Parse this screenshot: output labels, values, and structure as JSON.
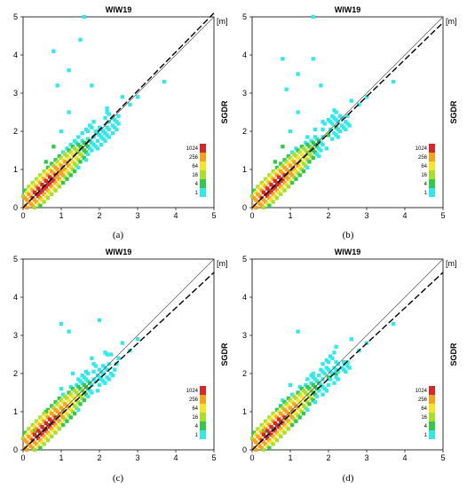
{
  "chart_data": [
    {
      "type": "heatmap",
      "panel_label": "(a)",
      "title": "WIW19",
      "ylabel": "SGDR",
      "unit": "[m]",
      "xlim": [
        0,
        5
      ],
      "ylim": [
        0,
        5
      ],
      "xticks": [
        "0",
        "1",
        "2",
        "3",
        "4",
        "5"
      ],
      "yticks": [
        "0",
        "1",
        "2",
        "3",
        "4",
        "5"
      ],
      "colorbar_ticks": [
        "1024",
        "256",
        "64",
        "16",
        "4",
        "1"
      ],
      "colors": {
        "cyan": "#33e8ea",
        "green": "#33c84b",
        "lime": "#a8de2c",
        "yellow": "#f5e42a",
        "orange": "#f5a21e",
        "red": "#d92626"
      },
      "fit_slope": 1.02,
      "points": [
        [
          0.5,
          0.45,
          1024
        ],
        [
          0.6,
          0.55,
          1024
        ],
        [
          0.7,
          0.65,
          512
        ],
        [
          0.4,
          0.35,
          512
        ],
        [
          0.8,
          0.75,
          256
        ],
        [
          0.9,
          0.85,
          256
        ],
        [
          1.0,
          0.95,
          128
        ],
        [
          1.2,
          1.1,
          64
        ],
        [
          1.4,
          1.3,
          32
        ],
        [
          1.6,
          1.5,
          16
        ],
        [
          1.8,
          1.7,
          8
        ],
        [
          2.0,
          1.9,
          4
        ],
        [
          2.2,
          2.1,
          4
        ],
        [
          2.5,
          2.4,
          2
        ],
        [
          2.8,
          2.7,
          1
        ],
        [
          3.0,
          2.9,
          1
        ],
        [
          0.3,
          0.6,
          16
        ],
        [
          0.6,
          1.2,
          8
        ],
        [
          0.8,
          1.6,
          4
        ],
        [
          1.0,
          2.0,
          2
        ],
        [
          1.2,
          2.5,
          1
        ],
        [
          0.8,
          4.1,
          1
        ],
        [
          1.5,
          4.4,
          1
        ],
        [
          1.2,
          3.6,
          1
        ],
        [
          0.9,
          3.2,
          1
        ],
        [
          1.8,
          3.2,
          1
        ],
        [
          2.6,
          2.9,
          1
        ],
        [
          3.7,
          3.3,
          1
        ],
        [
          1.6,
          5.0,
          1
        ],
        [
          2.2,
          2.6,
          1
        ]
      ]
    },
    {
      "type": "heatmap",
      "panel_label": "(b)",
      "title": "WIW19",
      "ylabel": "SGDR",
      "unit": "[m]",
      "xlim": [
        0,
        5
      ],
      "ylim": [
        0,
        5
      ],
      "xticks": [
        "0",
        "1",
        "2",
        "3",
        "4",
        "5"
      ],
      "yticks": [
        "0",
        "1",
        "2",
        "3",
        "4",
        "5"
      ],
      "colorbar_ticks": [
        "1024",
        "256",
        "64",
        "16",
        "4",
        "1"
      ],
      "colors": {
        "cyan": "#33e8ea",
        "green": "#33c84b",
        "lime": "#a8de2c",
        "yellow": "#f5e42a",
        "orange": "#f5a21e",
        "red": "#d92626"
      },
      "fit_slope": 0.97,
      "points": [
        [
          0.5,
          0.45,
          1024
        ],
        [
          0.6,
          0.55,
          1024
        ],
        [
          0.7,
          0.65,
          512
        ],
        [
          0.4,
          0.35,
          512
        ],
        [
          0.8,
          0.75,
          256
        ],
        [
          0.9,
          0.85,
          256
        ],
        [
          1.0,
          0.95,
          128
        ],
        [
          1.2,
          1.1,
          64
        ],
        [
          1.4,
          1.3,
          32
        ],
        [
          1.6,
          1.5,
          16
        ],
        [
          1.8,
          1.7,
          8
        ],
        [
          2.0,
          1.9,
          4
        ],
        [
          2.2,
          2.1,
          4
        ],
        [
          2.5,
          2.4,
          2
        ],
        [
          2.8,
          2.7,
          1
        ],
        [
          3.0,
          2.9,
          1
        ],
        [
          0.3,
          0.6,
          16
        ],
        [
          0.6,
          1.2,
          8
        ],
        [
          0.8,
          1.6,
          4
        ],
        [
          1.0,
          2.0,
          2
        ],
        [
          1.2,
          2.5,
          1
        ],
        [
          0.8,
          3.9,
          1
        ],
        [
          1.6,
          3.9,
          1
        ],
        [
          1.2,
          3.5,
          1
        ],
        [
          0.9,
          3.1,
          1
        ],
        [
          1.8,
          3.2,
          1
        ],
        [
          2.6,
          2.8,
          1
        ],
        [
          3.7,
          3.3,
          1
        ],
        [
          1.6,
          5.0,
          1
        ],
        [
          2.2,
          2.5,
          1
        ]
      ]
    },
    {
      "type": "heatmap",
      "panel_label": "(c)",
      "title": "WIW19",
      "ylabel": "SGDR",
      "unit": "[m]",
      "xlim": [
        0,
        5
      ],
      "ylim": [
        0,
        5
      ],
      "xticks": [
        "0",
        "1",
        "2",
        "3",
        "4",
        "5"
      ],
      "yticks": [
        "0",
        "1",
        "2",
        "3",
        "4",
        "5"
      ],
      "colorbar_ticks": [
        "1024",
        "256",
        "64",
        "16",
        "4",
        "1"
      ],
      "colors": {
        "cyan": "#33e8ea",
        "green": "#33c84b",
        "lime": "#a8de2c",
        "yellow": "#f5e42a",
        "orange": "#f5a21e",
        "red": "#d92626"
      },
      "fit_slope": 0.93,
      "points": [
        [
          0.6,
          0.55,
          256
        ],
        [
          0.7,
          0.65,
          256
        ],
        [
          0.8,
          0.75,
          128
        ],
        [
          0.5,
          0.45,
          128
        ],
        [
          0.9,
          0.85,
          64
        ],
        [
          1.0,
          0.95,
          64
        ],
        [
          1.2,
          1.1,
          32
        ],
        [
          1.4,
          1.3,
          16
        ],
        [
          1.6,
          1.5,
          16
        ],
        [
          1.8,
          1.7,
          8
        ],
        [
          2.0,
          1.9,
          4
        ],
        [
          2.2,
          2.1,
          4
        ],
        [
          2.5,
          2.4,
          2
        ],
        [
          2.8,
          2.6,
          1
        ],
        [
          3.0,
          2.9,
          1
        ],
        [
          0.3,
          0.5,
          8
        ],
        [
          0.6,
          1.0,
          4
        ],
        [
          1.0,
          1.6,
          2
        ],
        [
          1.3,
          2.0,
          1
        ],
        [
          1.0,
          3.3,
          1
        ],
        [
          1.2,
          3.1,
          1
        ],
        [
          2.0,
          3.4,
          1
        ],
        [
          2.6,
          2.8,
          1
        ],
        [
          1.8,
          2.4,
          1
        ],
        [
          2.3,
          2.5,
          1
        ]
      ]
    },
    {
      "type": "heatmap",
      "panel_label": "(d)",
      "title": "WIW19",
      "ylabel": "SGDR",
      "unit": "[m]",
      "xlim": [
        0,
        5
      ],
      "ylim": [
        0,
        5
      ],
      "xticks": [
        "0",
        "1",
        "2",
        "3",
        "4",
        "5"
      ],
      "yticks": [
        "0",
        "1",
        "2",
        "3",
        "4",
        "5"
      ],
      "colorbar_ticks": [
        "1024",
        "256",
        "64",
        "16",
        "4",
        "1"
      ],
      "colors": {
        "cyan": "#33e8ea",
        "green": "#33c84b",
        "lime": "#a8de2c",
        "yellow": "#f5e42a",
        "orange": "#f5a21e",
        "red": "#d92626"
      },
      "fit_slope": 0.93,
      "points": [
        [
          0.6,
          0.55,
          64
        ],
        [
          0.8,
          0.75,
          64
        ],
        [
          1.0,
          0.95,
          64
        ],
        [
          1.2,
          1.1,
          32
        ],
        [
          1.4,
          1.3,
          32
        ],
        [
          0.4,
          0.35,
          32
        ],
        [
          1.6,
          1.5,
          16
        ],
        [
          1.8,
          1.7,
          16
        ],
        [
          2.0,
          1.9,
          8
        ],
        [
          2.2,
          2.0,
          4
        ],
        [
          2.5,
          2.3,
          2
        ],
        [
          2.8,
          2.6,
          1
        ],
        [
          3.0,
          2.8,
          1
        ],
        [
          0.3,
          0.5,
          4
        ],
        [
          0.8,
          1.3,
          2
        ],
        [
          1.0,
          1.7,
          2
        ],
        [
          1.2,
          3.1,
          1
        ],
        [
          2.2,
          2.7,
          1
        ],
        [
          2.6,
          2.9,
          1
        ],
        [
          3.7,
          3.3,
          1
        ],
        [
          1.6,
          2.0,
          1
        ]
      ]
    }
  ]
}
